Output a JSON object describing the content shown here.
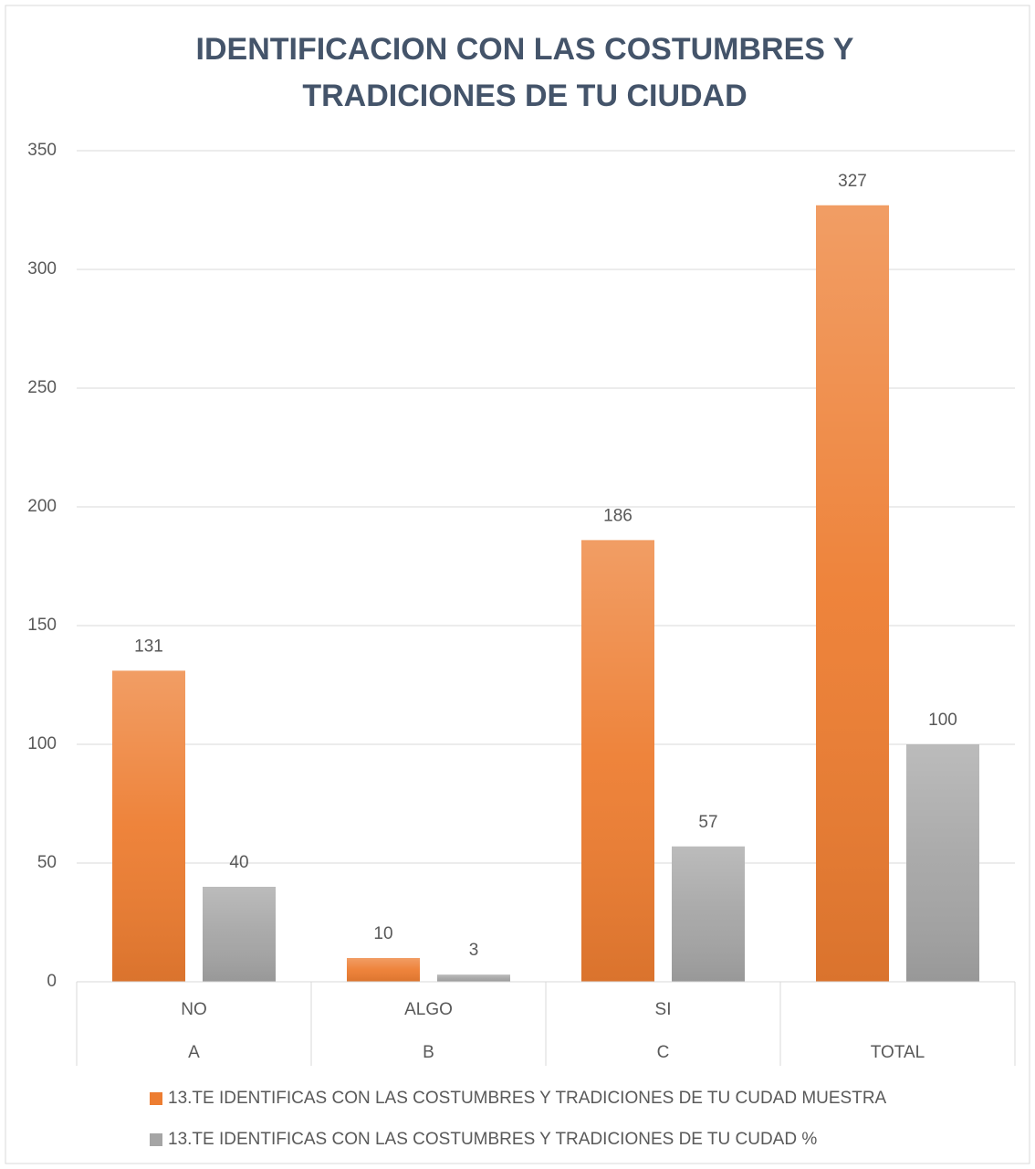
{
  "chart_data": {
    "type": "bar",
    "title": "IDENTIFICACION CON LAS COSTUMBRES Y TRADICIONES DE TU CIUDAD",
    "categories": [
      "NO",
      "ALGO",
      "SI",
      null
    ],
    "groups": [
      "A",
      "B",
      "C",
      "TOTAL"
    ],
    "series": [
      {
        "name": "13.TE IDENTIFICAS CON LAS COSTUMBRES Y TRADICIONES DE TU CUDAD MUESTRA",
        "color": "#ed7d31",
        "values": [
          131,
          10,
          186,
          327
        ]
      },
      {
        "name": "13.TE IDENTIFICAS CON LAS COSTUMBRES Y TRADICIONES DE TU CUDAD %",
        "color": "#a5a5a5",
        "values": [
          40,
          3,
          57,
          100
        ]
      }
    ],
    "ylim": [
      0,
      350
    ],
    "yticks": [
      0,
      50,
      100,
      150,
      200,
      250,
      300,
      350
    ],
    "grid": true,
    "legend": "bottom"
  }
}
